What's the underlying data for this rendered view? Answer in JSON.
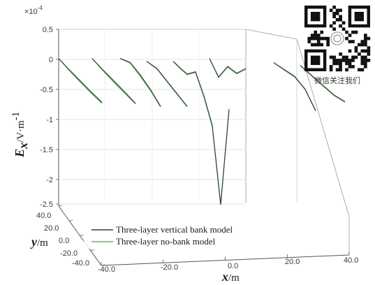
{
  "chart_data": {
    "type": "line",
    "multiplier": "×10",
    "multiplier_exponent": "-4",
    "z_label_base": "E",
    "z_label_sub": "x",
    "z_label_unit": "/V·m",
    "z_label_exp": "-1",
    "z_ticks": [
      "0.5",
      "0",
      "-0.5",
      "-1",
      "-1.5",
      "-2",
      "-2.5"
    ],
    "zlim": [
      -2.5,
      0.5
    ],
    "x_label_var": "x",
    "x_label_unit": "/m",
    "x_ticks": [
      "-40.0",
      "-20.0",
      "0.0",
      "20.0",
      "40.0"
    ],
    "xlim": [
      -40,
      40
    ],
    "y_label_var": "y",
    "y_label_unit": "/m",
    "y_ticks": [
      "40.0",
      "20.0",
      "0.0",
      "-20.0",
      "-40.0"
    ],
    "ylim": [
      -40,
      40
    ],
    "legend_position": "bottom-left",
    "series": [
      {
        "name": "Three-layer vertical bank model",
        "color": "#3a3a3a"
      },
      {
        "name": "Three-layer no-bank model",
        "color": "#5cb85c"
      }
    ],
    "profiles": [
      {
        "u": [
          0.0,
          0.25,
          0.5,
          0.75,
          1.0
        ],
        "bank": [
          0.0,
          -0.18,
          -0.35,
          -0.52,
          -0.68
        ],
        "nobank": [
          0.0,
          -0.19,
          -0.37,
          -0.54,
          -0.7
        ]
      },
      {
        "u": [
          0.0,
          0.25,
          0.5,
          0.75,
          1.0
        ],
        "bank": [
          0.0,
          -0.18,
          -0.35,
          -0.52,
          -0.7
        ],
        "nobank": [
          0.0,
          -0.19,
          -0.37,
          -0.54,
          -0.71
        ]
      },
      {
        "u": [
          0.0,
          0.25,
          0.5,
          0.75,
          1.0
        ],
        "bank": [
          0.0,
          -0.05,
          -0.25,
          -0.48,
          -0.75
        ],
        "nobank": [
          0.0,
          -0.06,
          -0.27,
          -0.5,
          -0.76
        ]
      },
      {
        "u": [
          0.0,
          0.25,
          0.5,
          0.75,
          1.0
        ],
        "bank": [
          -0.05,
          -0.15,
          -0.35,
          -0.55,
          -0.75
        ],
        "nobank": [
          -0.05,
          -0.16,
          -0.36,
          -0.56,
          -0.76
        ]
      },
      {
        "u": [
          0.0,
          0.12,
          0.25,
          0.4,
          0.55,
          0.7,
          0.85,
          1.0
        ],
        "bank": [
          -0.05,
          -0.15,
          -0.25,
          -0.2,
          -0.6,
          -1.1,
          -2.45,
          -0.8
        ],
        "nobank": [
          -0.05,
          -0.16,
          -0.26,
          -0.21,
          -0.62,
          -1.12,
          -2.45,
          -0.8
        ]
      },
      {
        "u": [
          0.0,
          0.25,
          0.5,
          0.75,
          1.0
        ],
        "bank": [
          0.0,
          -0.3,
          -0.1,
          -0.2,
          -0.1
        ],
        "nobank": [
          0.0,
          -0.31,
          -0.11,
          -0.21,
          -0.11
        ]
      },
      {
        "u": [
          0.0,
          0.25,
          0.5,
          0.75,
          1.0
        ],
        "bank": [
          0.0,
          -0.1,
          -0.2,
          -0.4,
          -0.75
        ],
        "nobank": [
          0.0,
          -0.11,
          -0.21,
          -0.41,
          -0.76
        ]
      },
      {
        "u": [
          0.0,
          0.25,
          0.5,
          0.75,
          1.0
        ],
        "bank": [
          0.0,
          -0.15,
          -0.3,
          -0.45,
          -0.55
        ],
        "nobank": [
          0.0,
          -0.16,
          -0.31,
          -0.46,
          -0.56
        ]
      }
    ]
  },
  "qr": {
    "caption": "微信关注我们"
  }
}
